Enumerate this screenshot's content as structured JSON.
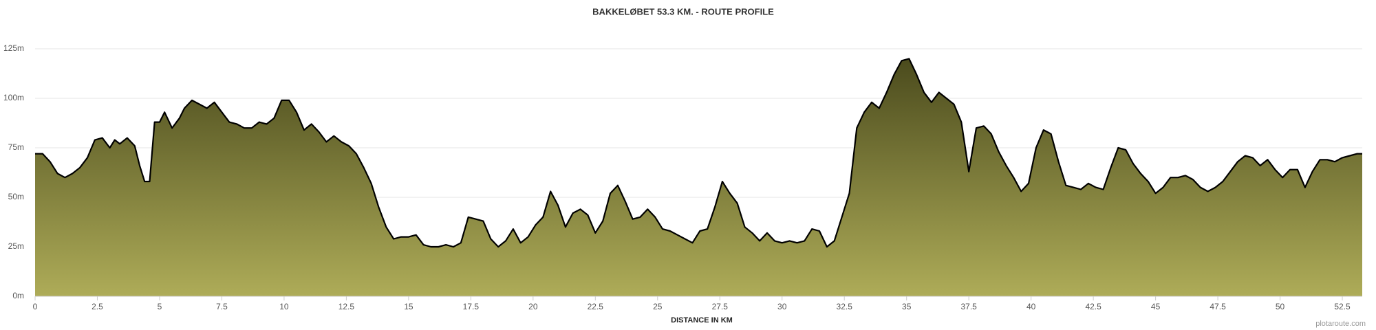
{
  "chart_data": {
    "type": "area",
    "title": "BAKKELØBET 53.3 KM. - ROUTE PROFILE",
    "x_label": "DISTANCE IN KM",
    "credit": "plotaroute.com",
    "x": [
      0,
      0.3,
      0.6,
      0.9,
      1.2,
      1.5,
      1.8,
      2.1,
      2.4,
      2.7,
      3.0,
      3.2,
      3.4,
      3.7,
      4.0,
      4.2,
      4.4,
      4.6,
      4.8,
      5.0,
      5.2,
      5.5,
      5.8,
      6.0,
      6.3,
      6.6,
      6.9,
      7.2,
      7.5,
      7.8,
      8.1,
      8.4,
      8.7,
      9.0,
      9.3,
      9.6,
      9.9,
      10.2,
      10.5,
      10.8,
      11.1,
      11.4,
      11.7,
      12.0,
      12.3,
      12.6,
      12.9,
      13.2,
      13.5,
      13.8,
      14.1,
      14.4,
      14.7,
      15.0,
      15.3,
      15.6,
      15.9,
      16.2,
      16.5,
      16.8,
      17.1,
      17.4,
      17.7,
      18.0,
      18.3,
      18.6,
      18.9,
      19.2,
      19.5,
      19.8,
      20.1,
      20.4,
      20.7,
      21.0,
      21.3,
      21.6,
      21.9,
      22.2,
      22.5,
      22.8,
      23.1,
      23.4,
      23.7,
      24.0,
      24.3,
      24.6,
      24.9,
      25.2,
      25.5,
      25.8,
      26.1,
      26.4,
      26.7,
      27.0,
      27.3,
      27.6,
      27.9,
      28.2,
      28.5,
      28.8,
      29.1,
      29.4,
      29.7,
      30.0,
      30.3,
      30.6,
      30.9,
      31.2,
      31.5,
      31.8,
      32.1,
      32.4,
      32.7,
      33.0,
      33.3,
      33.6,
      33.9,
      34.2,
      34.5,
      34.8,
      35.1,
      35.4,
      35.7,
      36.0,
      36.3,
      36.6,
      36.9,
      37.2,
      37.5,
      37.8,
      38.1,
      38.4,
      38.7,
      39.0,
      39.3,
      39.6,
      39.9,
      40.2,
      40.5,
      40.8,
      41.1,
      41.4,
      41.7,
      42.0,
      42.3,
      42.6,
      42.9,
      43.2,
      43.5,
      43.8,
      44.1,
      44.4,
      44.7,
      45.0,
      45.3,
      45.6,
      45.9,
      46.2,
      46.5,
      46.8,
      47.1,
      47.4,
      47.7,
      48.0,
      48.3,
      48.6,
      48.9,
      49.2,
      49.5,
      49.8,
      50.1,
      50.4,
      50.7,
      51.0,
      51.3,
      51.6,
      51.9,
      52.2,
      52.5,
      52.8,
      53.1,
      53.3
    ],
    "values": [
      72,
      72,
      68,
      62,
      60,
      62,
      65,
      70,
      79,
      80,
      75,
      79,
      77,
      80,
      76,
      66,
      58,
      58,
      88,
      88,
      93,
      85,
      90,
      95,
      99,
      97,
      95,
      98,
      93,
      88,
      87,
      85,
      85,
      88,
      87,
      90,
      99,
      99,
      93,
      84,
      87,
      83,
      78,
      81,
      78,
      76,
      72,
      65,
      57,
      45,
      35,
      29,
      30,
      30,
      31,
      26,
      25,
      25,
      26,
      25,
      27,
      40,
      39,
      38,
      29,
      25,
      28,
      34,
      27,
      30,
      36,
      40,
      53,
      46,
      35,
      42,
      44,
      41,
      32,
      38,
      52,
      56,
      48,
      39,
      40,
      44,
      40,
      34,
      33,
      31,
      29,
      27,
      33,
      34,
      45,
      58,
      52,
      47,
      35,
      32,
      28,
      32,
      28,
      27,
      28,
      27,
      28,
      34,
      33,
      25,
      28,
      40,
      52,
      85,
      93,
      98,
      95,
      103,
      112,
      119,
      120,
      112,
      103,
      98,
      103,
      100,
      97,
      88,
      63,
      85,
      86,
      82,
      73,
      66,
      60,
      53,
      57,
      75,
      84,
      82,
      68,
      56,
      55,
      54,
      57,
      55,
      54,
      65,
      75,
      74,
      67,
      62,
      58,
      52,
      55,
      60,
      60,
      61,
      59,
      55,
      53,
      55,
      58,
      63,
      68,
      71,
      70,
      66,
      69,
      64,
      60,
      64,
      64,
      55,
      63,
      69,
      69,
      68,
      70,
      71,
      72,
      72
    ],
    "color": "#000000",
    "area_gradient": [
      "#4b4b1d",
      "#aeac58"
    ],
    "xlim": [
      0,
      53.3
    ],
    "xticks": [
      0,
      2.5,
      5,
      7.5,
      10,
      12.5,
      15,
      17.5,
      20,
      22.5,
      25,
      27.5,
      30,
      32.5,
      35,
      37.5,
      40,
      42.5,
      45,
      47.5,
      50,
      52.5
    ],
    "ylim": [
      0,
      125
    ],
    "yticks": [
      {
        "value": 0,
        "label": "0m"
      },
      {
        "value": 25,
        "label": "25m"
      },
      {
        "value": 50,
        "label": "50m"
      },
      {
        "value": 75,
        "label": "75m"
      },
      {
        "value": 100,
        "label": "100m"
      },
      {
        "value": 125,
        "label": "125m"
      }
    ],
    "grid": true
  }
}
